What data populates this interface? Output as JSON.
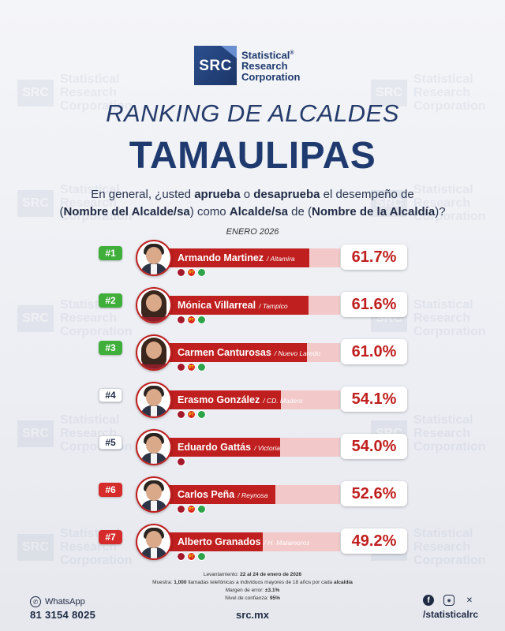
{
  "brand": {
    "logo_text": "SRC",
    "name_line1": "Statistical",
    "name_line2": "Research",
    "name_line3": "Corporation",
    "reg": "®"
  },
  "title": "RANKING DE ALCALDES",
  "subtitle": "TAMAULIPAS",
  "question": {
    "p1": "En general, ¿usted ",
    "b1": "aprueba",
    "p2": " o ",
    "b2": "desaprueba",
    "p3": " el desempeño de",
    "p4": "(",
    "b3": "Nombre del Alcalde/sa",
    "p5": ") como ",
    "b4": "Alcalde/sa",
    "p6": " de (",
    "b5": "Nombre de la Alcaldía",
    "p7": ")?"
  },
  "date": "ENERO 2026",
  "chart_data": {
    "type": "bar",
    "title": "RANKING DE ALCALDES TAMAULIPAS",
    "xlabel": "",
    "ylabel": "",
    "ylim": [
      0,
      100
    ],
    "categories": [
      "Armando Martínez",
      "Mónica Villarreal",
      "Carmen Canturosas",
      "Erasmo González",
      "Eduardo Gattás",
      "Carlos Peña",
      "Alberto Granados"
    ],
    "values": [
      61.7,
      61.6,
      61.0,
      54.1,
      54.0,
      52.6,
      49.2
    ],
    "items": [
      {
        "rank": "#1",
        "name": "Armando Martinez",
        "city": "/ Altamira",
        "value": 61.7,
        "label": "61.7%",
        "badge": "green",
        "gender": "m",
        "parties": [
          "MORENA",
          "PT",
          "PVEM"
        ]
      },
      {
        "rank": "#2",
        "name": "Mónica Villarreal",
        "city": "/ Tampico",
        "value": 61.6,
        "label": "61.6%",
        "badge": "green",
        "gender": "f",
        "parties": [
          "MORENA",
          "PT",
          "PVEM"
        ]
      },
      {
        "rank": "#3",
        "name": "Carmen Canturosas",
        "city": "/ Nuevo Laredo",
        "value": 61.0,
        "label": "61.0%",
        "badge": "green",
        "gender": "f",
        "parties": [
          "MORENA",
          "PT",
          "PVEM"
        ]
      },
      {
        "rank": "#4",
        "name": "Erasmo González",
        "city": "/ CD. Madero",
        "value": 54.1,
        "label": "54.1%",
        "badge": "white",
        "gender": "m",
        "parties": [
          "MORENA",
          "PT",
          "PVEM"
        ]
      },
      {
        "rank": "#5",
        "name": "Eduardo Gattás",
        "city": "/ Victoria",
        "value": 54.0,
        "label": "54.0%",
        "badge": "white",
        "gender": "m",
        "parties": [
          "MORENA"
        ]
      },
      {
        "rank": "#6",
        "name": "Carlos Peña",
        "city": "/ Reynosa",
        "value": 52.6,
        "label": "52.6%",
        "badge": "red",
        "gender": "m",
        "parties": [
          "MORENA",
          "PT",
          "PVEM"
        ]
      },
      {
        "rank": "#7",
        "name": "Alberto Granados",
        "city": "/ H. Matamoros",
        "value": 49.2,
        "label": "49.2%",
        "badge": "red",
        "gender": "m",
        "parties": [
          "MORENA",
          "PT",
          "PVEM"
        ]
      }
    ],
    "colors": {
      "bar": "#c01f1f",
      "track": "#f2c8c8",
      "green": "#3fae3a",
      "red": "#d52b2b"
    }
  },
  "notes": {
    "l1a": "Levantamiento: ",
    "l1b": "22 al 24 de enero de 2026",
    "l2a": "Muestra: ",
    "l2b": "1,000",
    "l2c": " llamadas telefónicas a individuos mayores de 18 años por cada ",
    "l2d": "alcaldía",
    "l3a": "Margen de error: ",
    "l3b": "±3.1%",
    "l4a": "Nivel de confianza: ",
    "l4b": "95%"
  },
  "footer": {
    "whatsapp_label": "WhatsApp",
    "phone": "81 3154 8025",
    "site": "src.mx",
    "handle": "/statisticalrc"
  }
}
